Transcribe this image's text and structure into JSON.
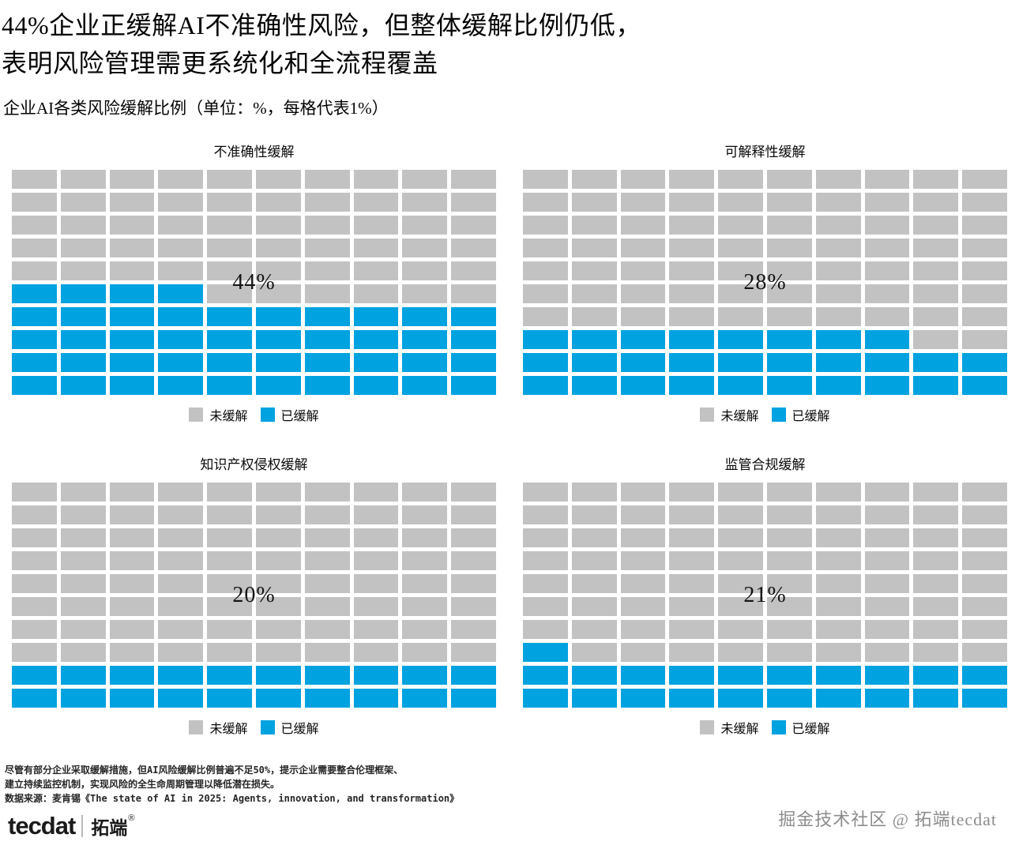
{
  "header": {
    "title_line1": "44%企业正缓解AI不准确性风险，但整体缓解比例仍低，",
    "title_line2": "表明风险管理需更系统化和全流程覆盖",
    "subtitle": "企业AI各类风险缓解比例（单位：%，每格代表1%）"
  },
  "colors": {
    "mitigated": "#00A2E0",
    "unmitigated": "#C2C2C2",
    "background": "#FFFFFF"
  },
  "legend": {
    "unmitigated_label": "未缓解",
    "mitigated_label": "已缓解"
  },
  "chart_data": [
    {
      "type": "waffle",
      "title": "不准确性缓解",
      "value": 44,
      "total": 100,
      "rows": 10,
      "cols": 10,
      "unit_per_cell_pct": 1,
      "label": "44%",
      "fill_origin": "bottom-left"
    },
    {
      "type": "waffle",
      "title": "可解释性缓解",
      "value": 28,
      "total": 100,
      "rows": 10,
      "cols": 10,
      "unit_per_cell_pct": 1,
      "label": "28%",
      "fill_origin": "bottom-left"
    },
    {
      "type": "waffle",
      "title": "知识产权侵权缓解",
      "value": 20,
      "total": 100,
      "rows": 10,
      "cols": 10,
      "unit_per_cell_pct": 1,
      "label": "20%",
      "fill_origin": "bottom-left"
    },
    {
      "type": "waffle",
      "title": "监管合规缓解",
      "value": 21,
      "total": 100,
      "rows": 10,
      "cols": 10,
      "unit_per_cell_pct": 1,
      "label": "21%",
      "fill_origin": "bottom-left"
    }
  ],
  "footnotes": {
    "line1": "尽管有部分企业采取缓解措施，但AI风险缓解比例普遍不足50%，提示企业需要整合伦理框架、",
    "line2": "建立持续监控机制，实现风险的全生命周期管理以降低潜在损失。",
    "source": "数据来源：麦肯锡《The state of AI in 2025: Agents, innovation, and transformation》"
  },
  "logo": {
    "brand": "tecdat",
    "brand_cn": "拓端",
    "reg": "®"
  },
  "watermark": "掘金技术社区 @ 拓端tecdat"
}
